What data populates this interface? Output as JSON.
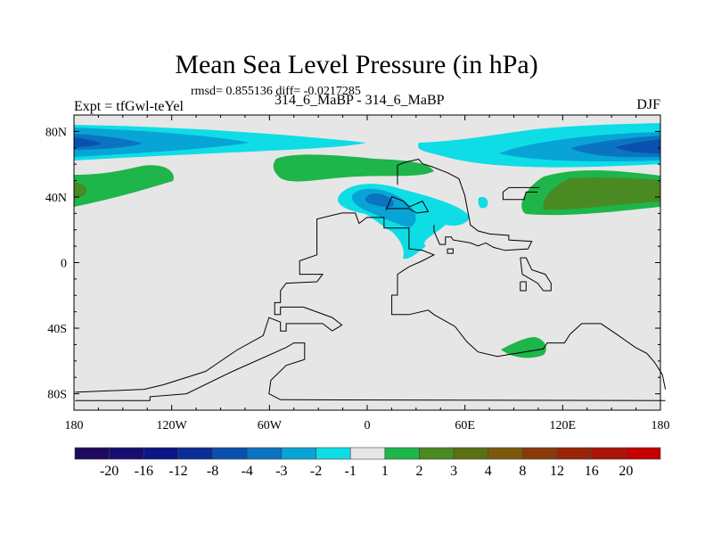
{
  "title": "Mean Sea Level Pressure (in hPa)",
  "stats": "rmsd= 0.855136 diff= -0.0217285",
  "left_label": "Expt = tfGwl-teYel",
  "center_label": "314_6_MaBP - 314_6_MaBP",
  "right_label": "DJF",
  "x_ticks": [
    "180",
    "120W",
    "60W",
    "0",
    "60E",
    "120E",
    "180"
  ],
  "y_ticks": [
    "80N",
    "40N",
    "0",
    "40S",
    "80S"
  ],
  "colorbar": {
    "labels": [
      "-20",
      "-16",
      "-12",
      "-8",
      "-4",
      "-3",
      "-2",
      "-1",
      "1",
      "2",
      "3",
      "4",
      "8",
      "12",
      "16",
      "20"
    ],
    "colors": [
      "#200a5e",
      "#170e74",
      "#0d1686",
      "#0b2d9a",
      "#0a50b0",
      "#0b74c0",
      "#08a4d6",
      "#0edde6",
      "#e6e6e6",
      "#1eb54a",
      "#4a8a22",
      "#5a7012",
      "#7a5a0a",
      "#8a3a0a",
      "#9a2406",
      "#aa1408",
      "#c40000"
    ]
  }
}
